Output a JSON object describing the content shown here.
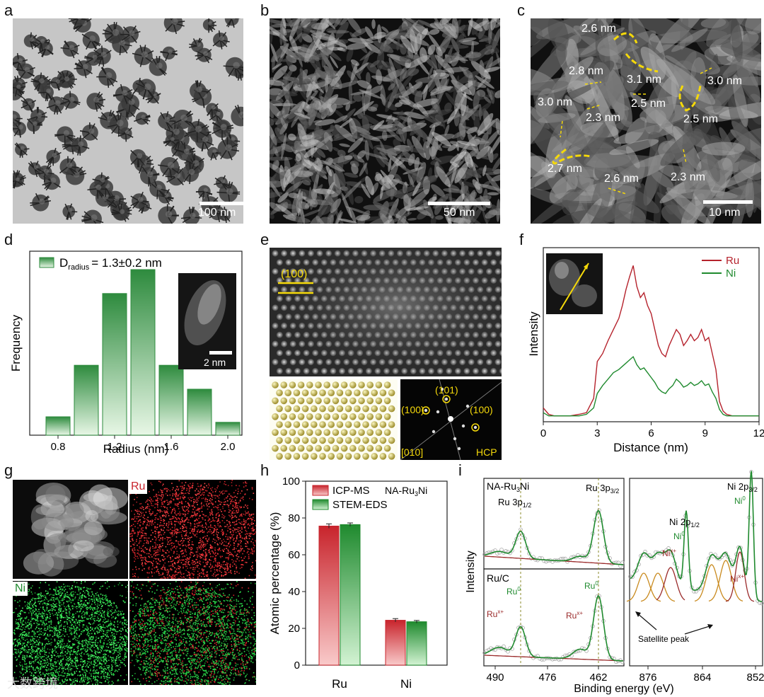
{
  "panel_labels": [
    "a",
    "b",
    "c",
    "d",
    "e",
    "f",
    "g",
    "h",
    "i"
  ],
  "panel_a": {
    "scale_bar": "100 nm"
  },
  "panel_b": {
    "scale_bar": "50 nm"
  },
  "panel_c": {
    "scale_bar": "10 nm",
    "annotations": [
      "2.6 nm",
      "2.8 nm",
      "3.1 nm",
      "3.0 nm",
      "3.0 nm",
      "2.5 nm",
      "2.3 nm",
      "2.5 nm",
      "2.7 nm",
      "2.6 nm",
      "2.3 nm"
    ]
  },
  "panel_d": {
    "chart_data": {
      "type": "bar",
      "categories": [
        "0.8",
        "1.0",
        "1.2",
        "1.4",
        "1.6",
        "1.8",
        "2.0"
      ],
      "values": [
        10,
        38,
        77,
        90,
        38,
        25,
        7
      ],
      "xlabel": "Radius (nm)",
      "ylabel": "Frequency",
      "legend_main": "D",
      "legend_sub": "radius",
      "legend_value": "= 1.3±0.2 nm",
      "xticks": [
        "0.8",
        "1.2",
        "1.6",
        "2.0"
      ],
      "inset_scale": "2 nm",
      "colors": {
        "bar_top": "#2e8b3e",
        "bar_bottom": "#e8f7e6"
      }
    }
  },
  "panel_e": {
    "plane": "(100)",
    "fft_labels": [
      "(101)",
      "(100)",
      "(100)"
    ],
    "zone": "[010]",
    "phase": "HCP"
  },
  "panel_f": {
    "chart_data": {
      "type": "line",
      "xlabel": "Distance (nm)",
      "ylabel": "Intensity",
      "xlim": [
        0,
        12
      ],
      "xticks": [
        "0",
        "3",
        "6",
        "9",
        "12"
      ],
      "legend_placement": "top-right",
      "series": [
        {
          "name": "Ru",
          "color": "#b5222c",
          "x": [
            0,
            0.3,
            0.6,
            1,
            1.5,
            2,
            2.4,
            2.8,
            3,
            3.3,
            3.6,
            3.9,
            4.2,
            4.4,
            4.6,
            4.8,
            5.0,
            5.2,
            5.4,
            5.6,
            5.8,
            6.0,
            6.2,
            6.4,
            6.6,
            6.8,
            7.0,
            7.2,
            7.4,
            7.6,
            7.8,
            8.0,
            8.2,
            8.4,
            8.6,
            8.8,
            9.0,
            9.2,
            9.4,
            9.6,
            9.8,
            10.0,
            10.2,
            10.5,
            11,
            11.5,
            12
          ],
          "y": [
            6,
            2,
            1,
            1,
            1,
            2,
            3,
            12,
            35,
            40,
            48,
            55,
            62,
            70,
            80,
            88,
            95,
            82,
            75,
            78,
            70,
            65,
            55,
            45,
            40,
            38,
            45,
            50,
            55,
            52,
            45,
            48,
            52,
            48,
            50,
            55,
            48,
            50,
            40,
            30,
            10,
            4,
            2,
            1,
            1,
            1,
            1
          ]
        },
        {
          "name": "Ni",
          "color": "#1f8a2e",
          "x": [
            0,
            0.3,
            0.6,
            1,
            1.5,
            2,
            2.4,
            2.8,
            3,
            3.3,
            3.6,
            3.9,
            4.2,
            4.4,
            4.6,
            4.8,
            5.0,
            5.2,
            5.4,
            5.6,
            5.8,
            6.0,
            6.2,
            6.4,
            6.6,
            6.8,
            7.0,
            7.2,
            7.4,
            7.6,
            7.8,
            8.0,
            8.2,
            8.4,
            8.6,
            8.8,
            9.0,
            9.2,
            9.4,
            9.6,
            9.8,
            10.0,
            10.2,
            10.5,
            11,
            11.5,
            12
          ],
          "y": [
            3,
            1,
            1,
            1,
            1,
            1,
            2,
            6,
            15,
            20,
            24,
            28,
            30,
            32,
            34,
            36,
            38,
            33,
            30,
            31,
            28,
            25,
            22,
            18,
            16,
            15,
            18,
            20,
            24,
            22,
            19,
            20,
            22,
            20,
            21,
            23,
            20,
            21,
            16,
            12,
            5,
            2,
            1,
            1,
            1,
            1,
            1
          ]
        }
      ]
    }
  },
  "panel_g": {
    "ru": "Ru",
    "ni": "Ni"
  },
  "panel_h": {
    "chart_data": {
      "type": "bar",
      "categories": [
        "Ru",
        "Ni"
      ],
      "series": [
        {
          "name": "ICP-MS",
          "values": [
            75.6,
            24.4
          ]
        },
        {
          "name": "STEM-EDS",
          "values": [
            76.4,
            23.6
          ]
        }
      ],
      "ylabel": "Atomic percentage (%)",
      "ylim": [
        0,
        100
      ],
      "yticks": [
        "0",
        "20",
        "40",
        "60",
        "80",
        "100"
      ],
      "title_main": "NA-Ru",
      "title_sub": "3",
      "title_end": "Ni",
      "colors": {
        "icp_top": "#c8242c",
        "icp_bottom": "#f9caca",
        "eds_top": "#1f8a2e",
        "eds_bottom": "#d3f3d3"
      }
    }
  },
  "panel_i": {
    "chart_data": {
      "type": "line",
      "xlabel": "Binding energy (eV)",
      "ylabel": "Intensity",
      "left_xticks": [
        "490",
        "476",
        "462"
      ],
      "right_xticks": [
        "876",
        "864",
        "852"
      ],
      "top_left_sample": "NA-Ru",
      "top_left_sample_sub": "3",
      "top_left_sample_end": "Ni",
      "bottom_left_sample": "Ru/C",
      "ru_3p12": "Ru 3p",
      "ru_3p12_sub": "1/2",
      "ru_3p32": "Ru 3p",
      "ru_3p32_sub": "3/2",
      "ru0": "Ru",
      "ru0_sup": "0",
      "rux": "Ru",
      "rux_sup": "x+",
      "ni_2p32": "Ni 2p",
      "ni_2p32_sub": "3/2",
      "ni_2p12": "Ni 2p",
      "ni_2p12_sub": "1/2",
      "ni0": "Ni",
      "ni0_sup": "0",
      "nix": "Ni",
      "nix_sup": "x+",
      "satellite": "Satellite peak",
      "colors": {
        "envelope": "#1f8a2e",
        "component": "#9a2a2a",
        "satellite": "#c98a1e",
        "raw": "#9a9a9a"
      }
    }
  },
  "watermark": "大数跨境"
}
